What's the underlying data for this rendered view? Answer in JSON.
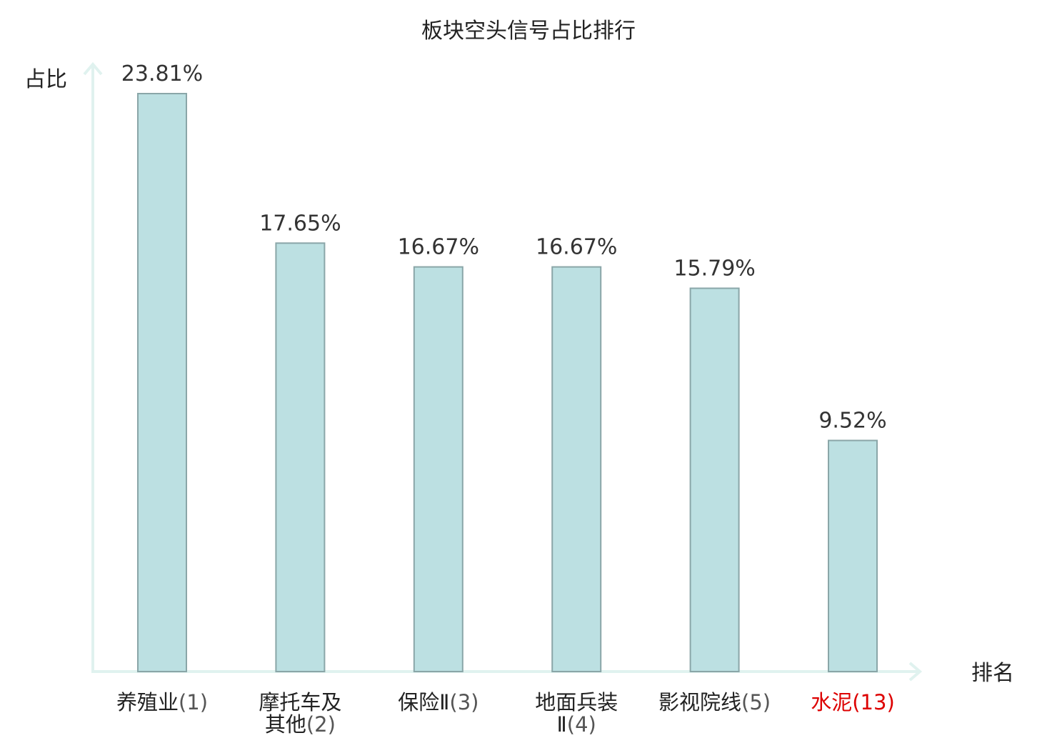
{
  "chart_data": {
    "type": "bar",
    "title": "板块空头信号占比排行",
    "ylabel": "占比",
    "xlabel": "排名",
    "ylim": [
      0,
      25
    ],
    "grid": false,
    "legend": "none",
    "categories": [
      {
        "name_lines": [
          "养殖业"
        ],
        "rank": "(1)",
        "highlight": false
      },
      {
        "name_lines": [
          "摩托车及",
          "其他"
        ],
        "rank": "(2)",
        "highlight": false
      },
      {
        "name_lines": [
          "保险Ⅱ"
        ],
        "rank": "(3)",
        "highlight": false
      },
      {
        "name_lines": [
          "地面兵装",
          "Ⅱ"
        ],
        "rank": "(4)",
        "highlight": false
      },
      {
        "name_lines": [
          "影视院线"
        ],
        "rank": "(5)",
        "highlight": false
      },
      {
        "name_lines": [
          "水泥"
        ],
        "rank": "(13)",
        "highlight": true
      }
    ],
    "values": [
      23.81,
      17.65,
      16.67,
      16.67,
      15.79,
      9.52
    ],
    "value_labels": [
      "23.81%",
      "17.65%",
      "16.67%",
      "16.67%",
      "15.79%",
      "9.52%"
    ]
  },
  "colors": {
    "bar_fill": "#bce0e2",
    "bar_stroke": "#8aa6a8",
    "axis": "#e0f2ef",
    "highlight_text": "#dd0000",
    "text": "#222222"
  }
}
